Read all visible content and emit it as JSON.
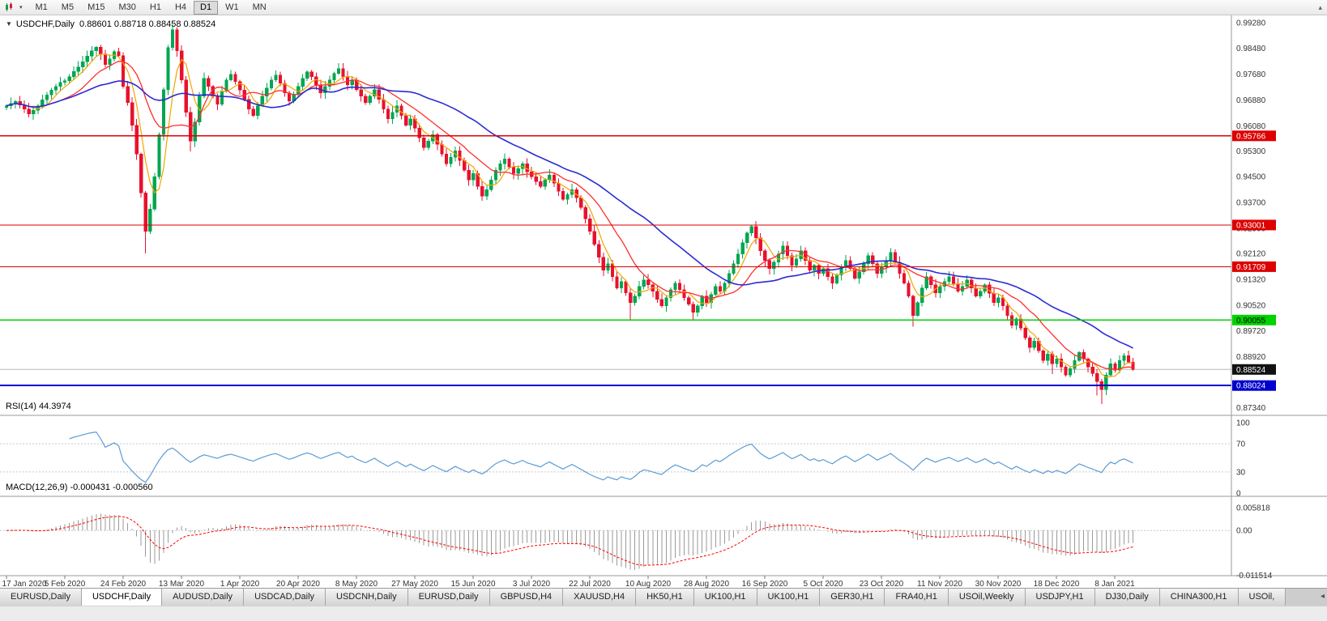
{
  "toolbar": {
    "timeframes": [
      "M1",
      "M5",
      "M15",
      "M30",
      "H1",
      "H4",
      "D1",
      "W1",
      "MN"
    ],
    "active_timeframe": "D1",
    "overflow_arrow": "▴"
  },
  "chart_header": {
    "arrow": "▼",
    "symbol": "USDCHF,Daily",
    "ohlc": "0.88601 0.88718 0.88458 0.88524"
  },
  "panels": {
    "rsi": {
      "label": "RSI(14) 44.3974",
      "period": 14,
      "current_value": "44.3974",
      "levels": [
        "100",
        "70",
        "30",
        "0"
      ],
      "level_values": [
        100,
        70,
        30,
        0
      ]
    },
    "macd": {
      "label": "MACD(12,26,9) -0.000431 -0.000560",
      "fast": 12,
      "slow": 26,
      "signal": 9,
      "values": [
        "-0.000431",
        "-0.000560"
      ],
      "axis_labels": [
        "0.005818",
        "0.00",
        "-0.011514"
      ],
      "axis_values": [
        0.005818,
        0,
        -0.011514
      ]
    }
  },
  "tabs": {
    "items": [
      "EURUSD,Daily",
      "USDCHF,Daily",
      "AUDUSD,Daily",
      "USDCAD,Daily",
      "USDCNH,Daily",
      "EURUSD,Daily",
      "GBPUSD,H4",
      "XAUUSD,H4",
      "HK50,H1",
      "UK100,H1",
      "UK100,H1",
      "GER30,H1",
      "FRA40,H1",
      "USOil,Weekly",
      "USDJPY,H1",
      "DJ30,Daily",
      "CHINA300,H1",
      "USOil,"
    ],
    "active_index": 1,
    "scroll_arrow": "◂"
  },
  "colors": {
    "bull": "#00a651",
    "bear": "#e8112d",
    "ma_fast": "#f0a500",
    "ma_mid": "#ff2d2d",
    "ma_slow": "#2b2bd4",
    "rsi_line": "#5b9bd5",
    "macd_hist": "#9a9a9a",
    "macd_signal": "#ff0000",
    "bid_line": "#b8b8b8",
    "grid_level": "#c8c8c8",
    "separator": "#9a9a9a",
    "axis_text": "#333333"
  },
  "chart_data": {
    "type": "candlestick",
    "symbol": "USDCHF",
    "timeframe": "Daily",
    "title": "USDCHF,Daily 0.88601 0.88718 0.88458 0.88524",
    "ylim": [
      0.871,
      0.9945
    ],
    "price_axis_labels": [
      "0.99280",
      "0.98480",
      "0.97680",
      "0.96880",
      "0.96080",
      "0.95300",
      "0.94500",
      "0.93700",
      "0.92900",
      "0.92120",
      "0.91320",
      "0.90520",
      "0.89720",
      "0.88920",
      "0.87340"
    ],
    "x_tick_labels": [
      "17 Jan 2020",
      "5 Feb 2020",
      "24 Feb 2020",
      "13 Mar 2020",
      "1 Apr 2020",
      "20 Apr 2020",
      "8 May 2020",
      "27 May 2020",
      "15 Jun 2020",
      "3 Jul 2020",
      "22 Jul 2020",
      "10 Aug 2020",
      "28 Aug 2020",
      "16 Sep 2020",
      "5 Oct 2020",
      "23 Oct 2020",
      "11 Nov 2020",
      "30 Nov 2020",
      "18 Dec 2020",
      "8 Jan 2021"
    ],
    "current_price": 0.88524,
    "current_price_label": "0.88524",
    "horizontal_lines": [
      {
        "value": 0.95766,
        "label": "0.95766",
        "color": "#dd0000",
        "text": "#ffffff",
        "width": 1.2
      },
      {
        "value": 0.93001,
        "label": "0.93001",
        "color": "#dd0000",
        "text": "#ffffff",
        "width": 1.2
      },
      {
        "value": 0.91709,
        "label": "0.91709",
        "color": "#dd0000",
        "text": "#ffffff",
        "width": 1.2
      },
      {
        "value": 0.90055,
        "label": "0.90055",
        "color": "#00d200",
        "text": "#000000",
        "width": 1.4
      },
      {
        "value": 0.88024,
        "label": "0.88024",
        "color": "#0000cd",
        "text": "#ffffff",
        "width": 2
      }
    ],
    "moving_averages": [
      {
        "name": "fast",
        "period": 5
      },
      {
        "name": "mid",
        "period": 13
      },
      {
        "name": "slow",
        "period": 34
      }
    ],
    "candles": {
      "first_open": 0.9665,
      "closes": [
        0.967,
        0.9677,
        0.9683,
        0.9672,
        0.966,
        0.9645,
        0.9656,
        0.967,
        0.9688,
        0.9703,
        0.9718,
        0.973,
        0.9742,
        0.9748,
        0.976,
        0.9776,
        0.979,
        0.9806,
        0.9824,
        0.984,
        0.9851,
        0.983,
        0.9798,
        0.9815,
        0.9838,
        0.9825,
        0.973,
        0.968,
        0.961,
        0.952,
        0.94,
        0.928,
        0.935,
        0.945,
        0.958,
        0.972,
        0.985,
        0.9905,
        0.984,
        0.975,
        0.965,
        0.956,
        0.962,
        0.97,
        0.9755,
        0.973,
        0.97,
        0.9675,
        0.9715,
        0.975,
        0.9768,
        0.9745,
        0.9718,
        0.969,
        0.966,
        0.964,
        0.967,
        0.97,
        0.9725,
        0.975,
        0.9765,
        0.974,
        0.971,
        0.9685,
        0.9705,
        0.973,
        0.9755,
        0.9775,
        0.976,
        0.9735,
        0.971,
        0.973,
        0.975,
        0.977,
        0.9785,
        0.976,
        0.9735,
        0.975,
        0.972,
        0.97,
        0.968,
        0.97,
        0.972,
        0.969,
        0.966,
        0.963,
        0.965,
        0.967,
        0.964,
        0.961,
        0.963,
        0.96,
        0.957,
        0.954,
        0.956,
        0.958,
        0.955,
        0.952,
        0.949,
        0.951,
        0.953,
        0.95,
        0.947,
        0.944,
        0.946,
        0.942,
        0.939,
        0.941,
        0.944,
        0.947,
        0.949,
        0.9505,
        0.948,
        0.946,
        0.9475,
        0.949,
        0.9465,
        0.945,
        0.9435,
        0.942,
        0.944,
        0.9455,
        0.943,
        0.9405,
        0.938,
        0.9395,
        0.941,
        0.9385,
        0.9355,
        0.932,
        0.928,
        0.924,
        0.92,
        0.916,
        0.918,
        0.914,
        0.9105,
        0.9125,
        0.909,
        0.906,
        0.908,
        0.911,
        0.913,
        0.9115,
        0.9095,
        0.907,
        0.905,
        0.9075,
        0.91,
        0.912,
        0.91,
        0.9075,
        0.9055,
        0.903,
        0.905,
        0.908,
        0.906,
        0.9085,
        0.911,
        0.9095,
        0.912,
        0.915,
        0.918,
        0.921,
        0.9245,
        0.9275,
        0.9295,
        0.926,
        0.922,
        0.919,
        0.9165,
        0.9185,
        0.921,
        0.9235,
        0.9205,
        0.9175,
        0.9195,
        0.922,
        0.919,
        0.916,
        0.9175,
        0.915,
        0.9165,
        0.914,
        0.912,
        0.9145,
        0.917,
        0.919,
        0.9165,
        0.9135,
        0.9155,
        0.918,
        0.9205,
        0.918,
        0.915,
        0.917,
        0.919,
        0.9215,
        0.9185,
        0.915,
        0.912,
        0.908,
        0.902,
        0.906,
        0.9105,
        0.914,
        0.9115,
        0.909,
        0.911,
        0.9125,
        0.914,
        0.9118,
        0.9095,
        0.911,
        0.913,
        0.9105,
        0.908,
        0.9095,
        0.9115,
        0.9088,
        0.906,
        0.9075,
        0.905,
        0.902,
        0.899,
        0.901,
        0.898,
        0.895,
        0.892,
        0.894,
        0.891,
        0.888,
        0.89,
        0.887,
        0.8885,
        0.886,
        0.8835,
        0.8855,
        0.888,
        0.8905,
        0.8885,
        0.886,
        0.884,
        0.8815,
        0.879,
        0.8835,
        0.887,
        0.885,
        0.888,
        0.8895,
        0.8875,
        0.88524
      ],
      "high_overrides": {
        "21": 0.9858,
        "37": 0.9922,
        "166": 0.93
      },
      "low_overrides": {
        "31": 0.9212,
        "41": 0.9528,
        "139": 0.9008,
        "153": 0.9006,
        "202": 0.8985,
        "233": 0.8838,
        "243": 0.8772,
        "244": 0.8745
      }
    }
  }
}
